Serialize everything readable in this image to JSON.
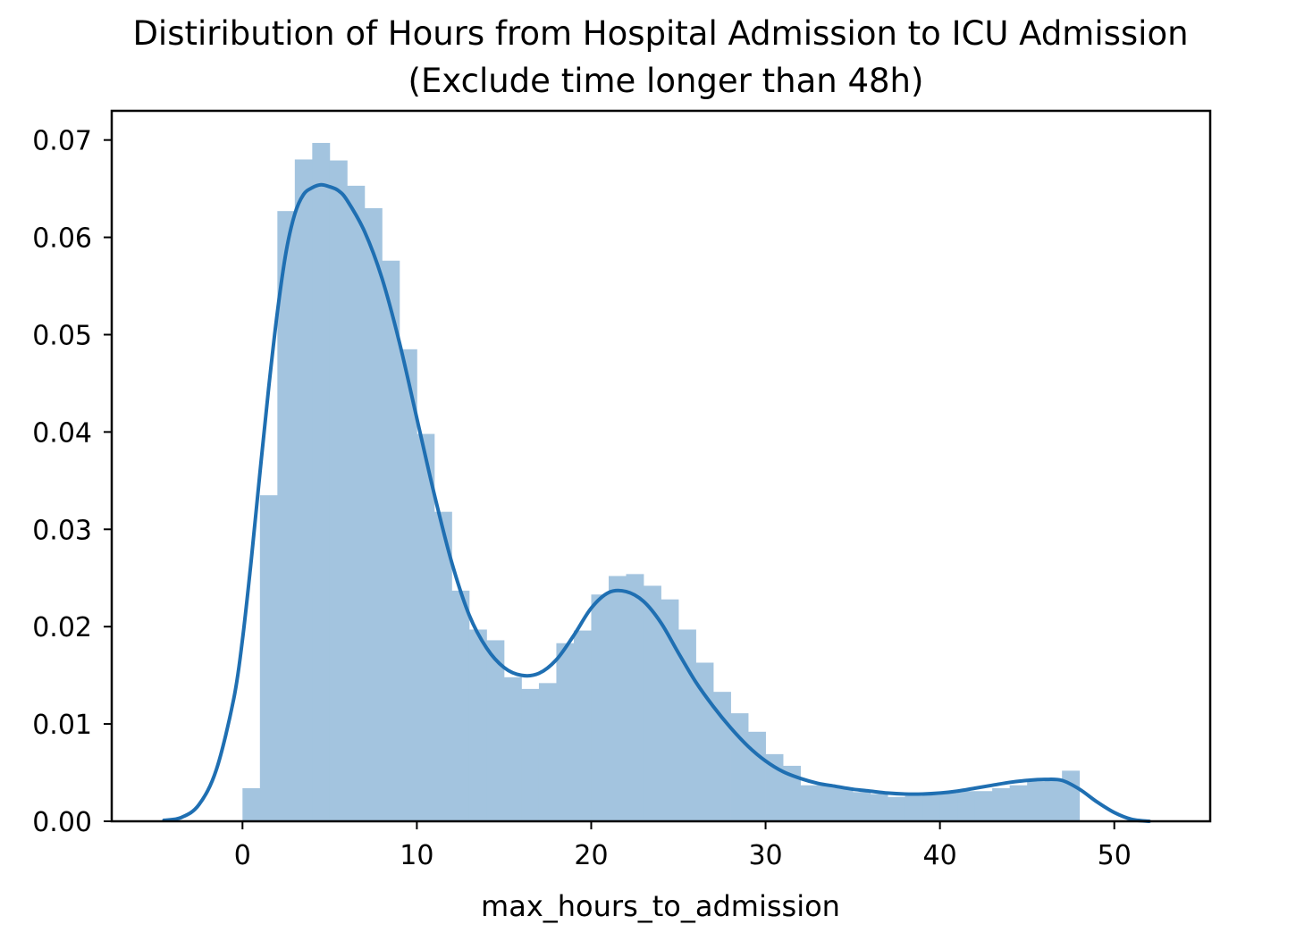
{
  "chart_data": {
    "type": "bar",
    "title": "Distiribution of Hours from Hospital Admission to ICU Admission",
    "subtitle": "(Exclude time longer than 48h)",
    "xlabel": "max_hours_to_admission",
    "ylabel": "",
    "xlim": [
      -7.5,
      55.5
    ],
    "ylim": [
      0,
      0.073
    ],
    "xticks": [
      0,
      10,
      20,
      30,
      40,
      50
    ],
    "xtick_labels": [
      "0",
      "10",
      "20",
      "30",
      "40",
      "50"
    ],
    "yticks": [
      0,
      0.01,
      0.02,
      0.03,
      0.04,
      0.05,
      0.06,
      0.07
    ],
    "ytick_labels": [
      "0.00",
      "0.01",
      "0.02",
      "0.03",
      "0.04",
      "0.05",
      "0.06",
      "0.07"
    ],
    "grid": false,
    "histogram": {
      "bin_edges": [
        0,
        1,
        2,
        3,
        4,
        5,
        6,
        7,
        8,
        9,
        10,
        11,
        12,
        13,
        14,
        15,
        16,
        17,
        18,
        19,
        20,
        21,
        22,
        23,
        24,
        25,
        26,
        27,
        28,
        29,
        30,
        31,
        32,
        33,
        34,
        35,
        36,
        37,
        38,
        39,
        40,
        41,
        42,
        43,
        44,
        45,
        46,
        47,
        48
      ],
      "values": [
        0.0034,
        0.0335,
        0.0627,
        0.068,
        0.0697,
        0.0679,
        0.0653,
        0.063,
        0.0576,
        0.0485,
        0.0398,
        0.0318,
        0.0237,
        0.0197,
        0.0186,
        0.0148,
        0.0136,
        0.0142,
        0.0183,
        0.0196,
        0.0233,
        0.0252,
        0.0254,
        0.0242,
        0.0228,
        0.0197,
        0.0163,
        0.0133,
        0.0111,
        0.0092,
        0.0069,
        0.0057,
        0.0037,
        0.0037,
        0.0034,
        0.003,
        0.0028,
        0.0025,
        0.0026,
        0.0027,
        0.0029,
        0.0031,
        0.0031,
        0.0034,
        0.0037,
        0.0041,
        0.0043,
        0.0052
      ],
      "color": "#a3c4df"
    },
    "kde": {
      "x": [
        -4.5,
        -3.5,
        -2.5,
        -1.5,
        -0.5,
        0,
        0.5,
        1,
        1.5,
        2,
        2.5,
        3,
        3.5,
        4,
        4.5,
        5,
        5.5,
        6,
        7,
        8,
        9,
        10,
        11,
        12,
        13,
        14,
        15,
        16,
        17,
        18,
        19,
        20,
        21,
        22,
        23,
        24,
        25,
        26,
        27,
        28,
        29,
        30,
        31,
        32,
        33,
        34,
        35,
        36,
        37,
        38,
        39,
        40,
        41,
        42,
        43,
        44,
        45,
        46,
        47,
        48,
        49,
        50,
        51,
        52
      ],
      "y": [
        0.0001,
        0.0004,
        0.0017,
        0.0053,
        0.0126,
        0.0187,
        0.0268,
        0.0358,
        0.0445,
        0.0523,
        0.0585,
        0.0624,
        0.0644,
        0.0651,
        0.0654,
        0.0652,
        0.0648,
        0.0638,
        0.0606,
        0.0558,
        0.0492,
        0.0414,
        0.0336,
        0.0266,
        0.0212,
        0.0178,
        0.0158,
        0.015,
        0.0152,
        0.0166,
        0.0191,
        0.0219,
        0.0235,
        0.0236,
        0.0226,
        0.0204,
        0.0173,
        0.0143,
        0.0118,
        0.0096,
        0.0077,
        0.0062,
        0.0051,
        0.0044,
        0.0039,
        0.0036,
        0.0033,
        0.0031,
        0.0029,
        0.0028,
        0.0028,
        0.0029,
        0.0031,
        0.0034,
        0.0037,
        0.004,
        0.0042,
        0.0043,
        0.0042,
        0.0033,
        0.002,
        0.0009,
        0.0002,
        0.0
      ],
      "color": "#1f6fb2"
    }
  }
}
